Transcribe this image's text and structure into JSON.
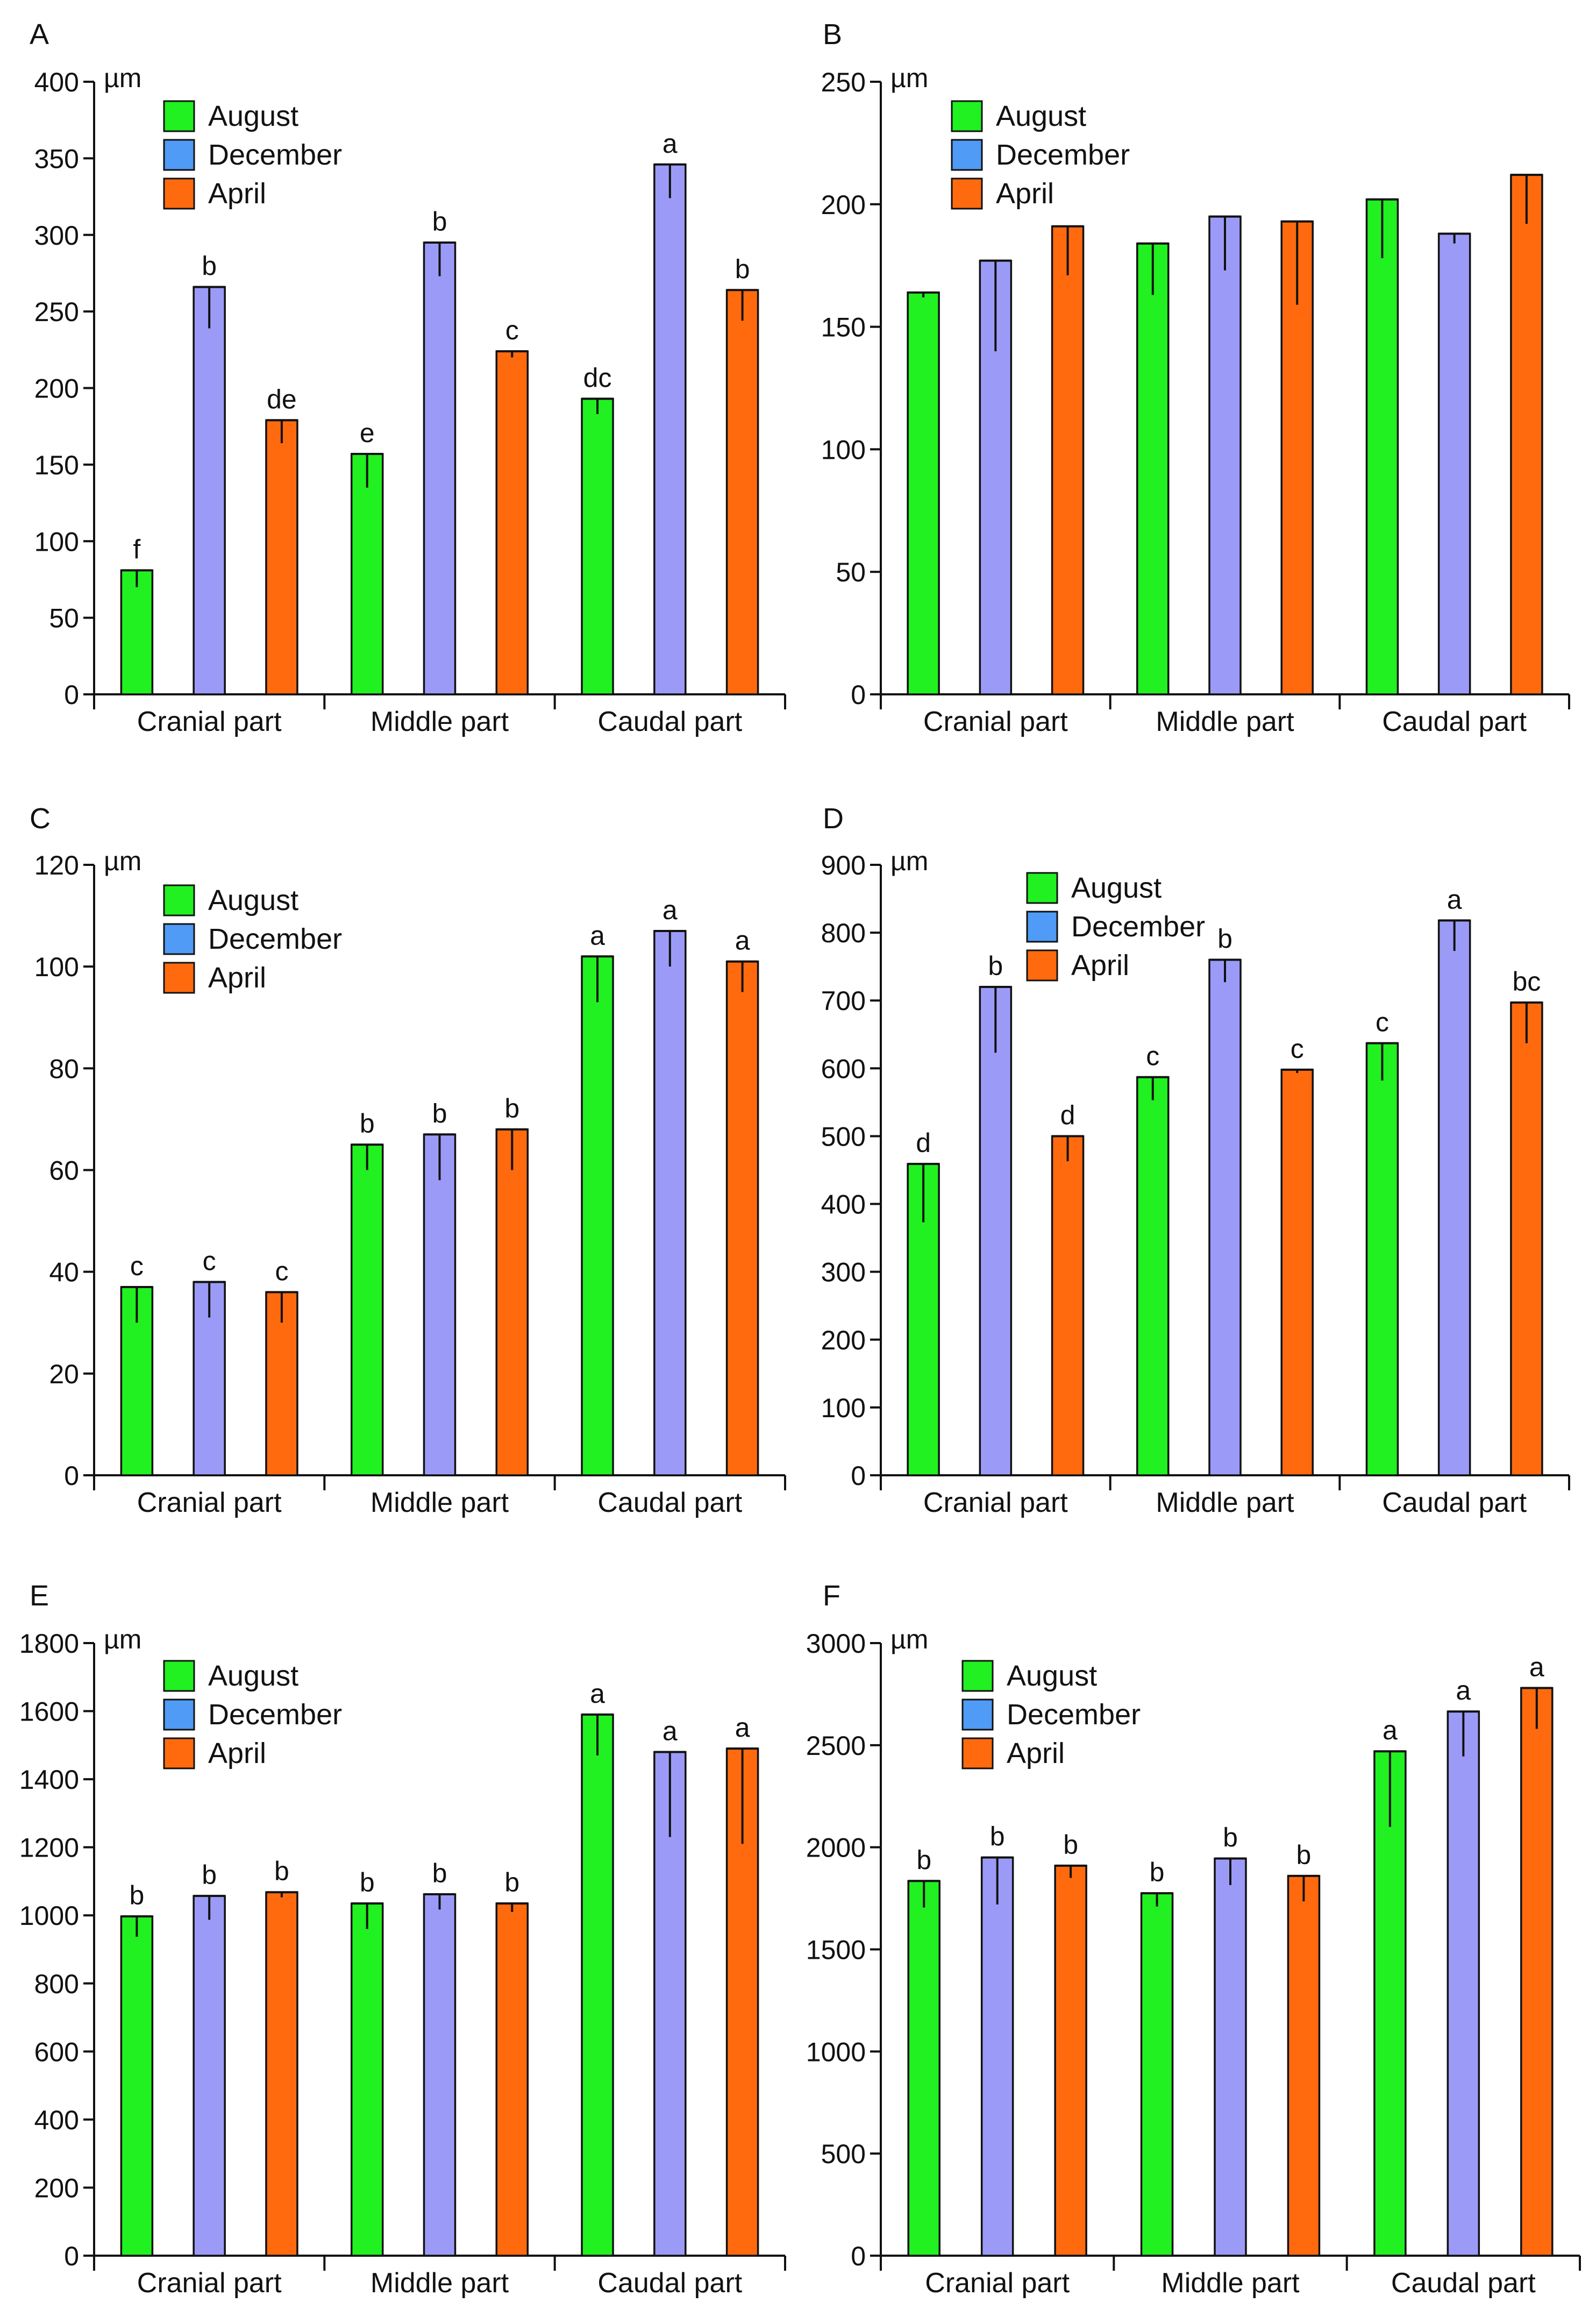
{
  "colors": {
    "August": "#21f021",
    "December": "#9b9bf7",
    "April": "#ff6a0e",
    "legend_December": "#4f9bf5"
  },
  "unit": "µm",
  "chart_data": [
    {
      "panel": "A",
      "type": "bar",
      "title": "",
      "ylabel": "µm",
      "xlabel": "",
      "ylim": [
        0,
        400
      ],
      "yticks": [
        0,
        50,
        100,
        150,
        200,
        250,
        300,
        350,
        400
      ],
      "categories": [
        "Cranial part",
        "Middle part",
        "Caudal part"
      ],
      "legend": [
        "August",
        "December",
        "April"
      ],
      "legend_position": "top-left",
      "series": [
        {
          "name": "August",
          "values": [
            81,
            157,
            193
          ],
          "errors": [
            11,
            22,
            10
          ],
          "labels": [
            "f",
            "e",
            "dc"
          ]
        },
        {
          "name": "December",
          "values": [
            266,
            295,
            346
          ],
          "errors": [
            27,
            22,
            22
          ],
          "labels": [
            "b",
            "b",
            "a"
          ]
        },
        {
          "name": "April",
          "values": [
            179,
            224,
            264
          ],
          "errors": [
            15,
            4,
            20
          ],
          "labels": [
            "de",
            "c",
            "b"
          ]
        }
      ]
    },
    {
      "panel": "B",
      "type": "bar",
      "title": "",
      "ylabel": "µm",
      "xlabel": "",
      "ylim": [
        0,
        250
      ],
      "yticks": [
        0,
        50,
        100,
        150,
        200,
        250
      ],
      "categories": [
        "Cranial part",
        "Middle part",
        "Caudal part"
      ],
      "legend": [
        "August",
        "December",
        "April"
      ],
      "legend_position": "top-left",
      "series": [
        {
          "name": "August",
          "values": [
            164,
            184,
            202
          ],
          "errors": [
            2,
            21,
            24
          ],
          "labels": [
            "",
            "",
            ""
          ]
        },
        {
          "name": "December",
          "values": [
            177,
            195,
            188
          ],
          "errors": [
            37,
            22,
            4
          ],
          "labels": [
            "",
            "",
            ""
          ]
        },
        {
          "name": "April",
          "values": [
            191,
            193,
            212
          ],
          "errors": [
            20,
            34,
            20
          ],
          "labels": [
            "",
            "",
            ""
          ]
        }
      ]
    },
    {
      "panel": "C",
      "type": "bar",
      "title": "",
      "ylabel": "µm",
      "xlabel": "",
      "ylim": [
        0,
        120
      ],
      "yticks": [
        0,
        20,
        40,
        60,
        80,
        100,
        120
      ],
      "categories": [
        "Cranial part",
        "Middle part",
        "Caudal part"
      ],
      "legend": [
        "August",
        "December",
        "April"
      ],
      "legend_position": "top-left",
      "series": [
        {
          "name": "August",
          "values": [
            37,
            65,
            102
          ],
          "errors": [
            7,
            5,
            9
          ],
          "labels": [
            "c",
            "b",
            "a"
          ]
        },
        {
          "name": "December",
          "values": [
            38,
            67,
            107
          ],
          "errors": [
            7,
            9,
            7
          ],
          "labels": [
            "c",
            "b",
            "a"
          ]
        },
        {
          "name": "April",
          "values": [
            36,
            68,
            101
          ],
          "errors": [
            6,
            8,
            6
          ],
          "labels": [
            "c",
            "b",
            "a"
          ]
        }
      ]
    },
    {
      "panel": "D",
      "type": "bar",
      "title": "",
      "ylabel": "µm",
      "xlabel": "",
      "ylim": [
        0,
        900
      ],
      "yticks": [
        0,
        100,
        200,
        300,
        400,
        500,
        600,
        700,
        800,
        900
      ],
      "categories": [
        "Cranial part",
        "Middle part",
        "Caudal part"
      ],
      "legend": [
        "August",
        "December",
        "April"
      ],
      "legend_position": "top-center",
      "series": [
        {
          "name": "August",
          "values": [
            459,
            587,
            637
          ],
          "errors": [
            86,
            34,
            55
          ],
          "labels": [
            "d",
            "c",
            "c"
          ]
        },
        {
          "name": "December",
          "values": [
            720,
            760,
            818
          ],
          "errors": [
            97,
            33,
            45
          ],
          "labels": [
            "b",
            "b",
            "a"
          ]
        },
        {
          "name": "April",
          "values": [
            500,
            598,
            697
          ],
          "errors": [
            37,
            5,
            60
          ],
          "labels": [
            "d",
            "c",
            "bc"
          ]
        }
      ]
    },
    {
      "panel": "E",
      "type": "bar",
      "title": "",
      "ylabel": "µm",
      "xlabel": "",
      "ylim": [
        0,
        1800
      ],
      "yticks": [
        0,
        200,
        400,
        600,
        800,
        1000,
        1200,
        1400,
        1600,
        1800
      ],
      "categories": [
        "Cranial part",
        "Middle part",
        "Caudal part"
      ],
      "legend": [
        "August",
        "December",
        "April"
      ],
      "legend_position": "top-left",
      "series": [
        {
          "name": "August",
          "values": [
            997,
            1035,
            1590
          ],
          "errors": [
            60,
            75,
            120
          ],
          "labels": [
            "b",
            "b",
            "a"
          ]
        },
        {
          "name": "December",
          "values": [
            1057,
            1062,
            1480
          ],
          "errors": [
            70,
            45,
            250
          ],
          "labels": [
            "b",
            "b",
            "a"
          ]
        },
        {
          "name": "April",
          "values": [
            1068,
            1035,
            1490
          ],
          "errors": [
            15,
            25,
            280
          ],
          "labels": [
            "b",
            "b",
            "a"
          ]
        }
      ]
    },
    {
      "panel": "F",
      "type": "bar",
      "title": "",
      "ylabel": "µm",
      "xlabel": "",
      "ylim": [
        0,
        3000
      ],
      "yticks": [
        0,
        500,
        1000,
        1500,
        2000,
        2500,
        3000
      ],
      "categories": [
        "Cranial part",
        "Middle part",
        "Caudal part"
      ],
      "legend": [
        "August",
        "December",
        "April"
      ],
      "legend_position": "top-left",
      "series": [
        {
          "name": "August",
          "values": [
            1835,
            1775,
            2470
          ],
          "errors": [
            130,
            65,
            370
          ],
          "labels": [
            "b",
            "b",
            "a"
          ]
        },
        {
          "name": "December",
          "values": [
            1950,
            1945,
            2665
          ],
          "errors": [
            230,
            130,
            220
          ],
          "labels": [
            "b",
            "b",
            "a"
          ]
        },
        {
          "name": "April",
          "values": [
            1910,
            1860,
            2780
          ],
          "errors": [
            60,
            125,
            200
          ],
          "labels": [
            "b",
            "b",
            "a"
          ]
        }
      ]
    }
  ]
}
